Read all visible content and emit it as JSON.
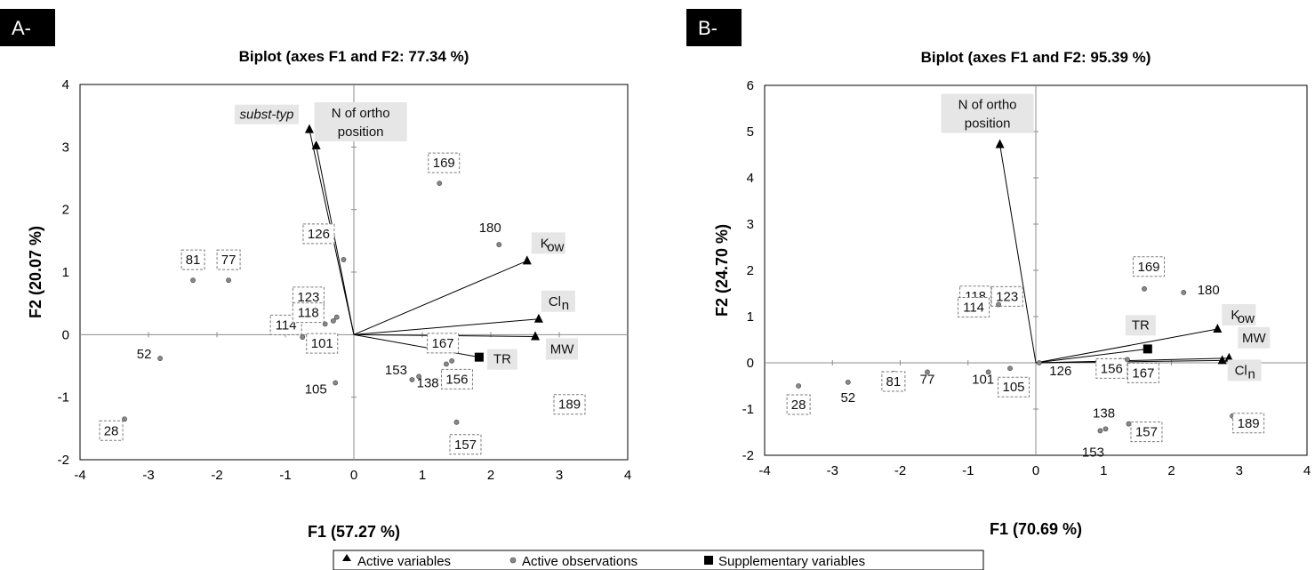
{
  "chart_data": [
    {
      "type": "scatter",
      "panel": "A-",
      "title": "Biplot (axes F1 and F2: 77.34 %)",
      "xlabel": "F1 (57.27 %)",
      "ylabel": "F2 (20.07 %)",
      "xlim": [
        -4,
        4
      ],
      "ylim": [
        -2,
        4
      ],
      "xticks": [
        "-4",
        "-3",
        "-2",
        "-1",
        "0",
        "1",
        "2",
        "3",
        "4"
      ],
      "yticks": [
        "-2",
        "-1",
        "0",
        "1",
        "2",
        "3",
        "4"
      ],
      "active_variables": [
        {
          "label": "subst-typ",
          "x": -0.65,
          "y": 3.28
        },
        {
          "label": "N of ortho position",
          "x": -0.55,
          "y": 3.02
        },
        {
          "label": "K",
          "sub": "ow",
          "x": 2.53,
          "y": 1.18
        },
        {
          "label": "Cl",
          "sub": "n",
          "x": 2.7,
          "y": 0.25
        },
        {
          "label": "MW",
          "x": 2.65,
          "y": -0.03
        }
      ],
      "supplementary_variables": [
        {
          "label": "TR",
          "x": 1.83,
          "y": -0.36
        }
      ],
      "observations": [
        {
          "label": "169",
          "x": 1.25,
          "y": 2.42,
          "boxed": true
        },
        {
          "label": "180",
          "x": 2.12,
          "y": 1.44,
          "boxed": false
        },
        {
          "label": "126",
          "x": -0.15,
          "y": 1.2,
          "boxed": true
        },
        {
          "label": "81",
          "x": -2.35,
          "y": 0.87,
          "boxed": true
        },
        {
          "label": "77",
          "x": -1.83,
          "y": 0.87,
          "boxed": true
        },
        {
          "label": "123",
          "x": -0.3,
          "y": 0.22,
          "boxed": true
        },
        {
          "label": "114",
          "x": -0.42,
          "y": 0.17,
          "boxed": true
        },
        {
          "label": "118",
          "x": -0.25,
          "y": 0.28,
          "boxed": true
        },
        {
          "label": "101",
          "x": -0.75,
          "y": -0.04,
          "boxed": true
        },
        {
          "label": "52",
          "x": -2.83,
          "y": -0.38,
          "boxed": false
        },
        {
          "label": "167",
          "x": 1.43,
          "y": -0.42,
          "boxed": true
        },
        {
          "label": "156",
          "x": 1.35,
          "y": -0.47,
          "boxed": true
        },
        {
          "label": "153",
          "x": 0.85,
          "y": -0.72,
          "boxed": false
        },
        {
          "label": "138",
          "x": 0.95,
          "y": -0.67,
          "boxed": false
        },
        {
          "label": "105",
          "x": -0.27,
          "y": -0.77,
          "boxed": false
        },
        {
          "label": "189",
          "x": 3.02,
          "y": -1.1,
          "boxed": true
        },
        {
          "label": "157",
          "x": 1.5,
          "y": -1.4,
          "boxed": true
        },
        {
          "label": "28",
          "x": -3.35,
          "y": -1.35,
          "boxed": true
        }
      ]
    },
    {
      "type": "scatter",
      "panel": "B-",
      "title": "Biplot (axes F1 and F2: 95.39 %)",
      "xlabel": "F1 (70.69 %)",
      "ylabel": "F2 (24.70 %)",
      "xlim": [
        -4,
        4
      ],
      "ylim": [
        -2,
        6
      ],
      "xticks": [
        "-4",
        "-3",
        "-2",
        "-1",
        "0",
        "1",
        "2",
        "3",
        "4"
      ],
      "yticks": [
        "-2",
        "-1",
        "0",
        "1",
        "2",
        "3",
        "4",
        "5",
        "6"
      ],
      "active_variables": [
        {
          "label": "N of ortho position",
          "x": -0.53,
          "y": 4.72
        },
        {
          "label": "K",
          "sub": "ow",
          "x": 2.68,
          "y": 0.73
        },
        {
          "label": "MW",
          "x": 2.85,
          "y": 0.1
        },
        {
          "label": "Cl",
          "sub": "n",
          "x": 2.75,
          "y": 0.05
        }
      ],
      "supplementary_variables": [
        {
          "label": "TR",
          "x": 1.65,
          "y": 0.3
        }
      ],
      "observations": [
        {
          "label": "169",
          "x": 1.6,
          "y": 1.6,
          "boxed": true
        },
        {
          "label": "180",
          "x": 2.18,
          "y": 1.52,
          "boxed": false
        },
        {
          "label": "118",
          "x": -0.55,
          "y": 1.35,
          "boxed": true
        },
        {
          "label": "123",
          "x": -0.45,
          "y": 1.3,
          "boxed": true
        },
        {
          "label": "114",
          "x": -0.55,
          "y": 1.26,
          "boxed": true
        },
        {
          "label": "126",
          "x": 0.05,
          "y": 0.0,
          "boxed": false
        },
        {
          "label": "156",
          "x": 1.25,
          "y": 0.05,
          "boxed": true
        },
        {
          "label": "167",
          "x": 1.35,
          "y": 0.07,
          "boxed": true
        },
        {
          "label": "105",
          "x": -0.38,
          "y": -0.12,
          "boxed": true
        },
        {
          "label": "101",
          "x": -0.7,
          "y": -0.2,
          "boxed": false
        },
        {
          "label": "77",
          "x": -1.6,
          "y": -0.2,
          "boxed": false
        },
        {
          "label": "81",
          "x": -2.1,
          "y": -0.23,
          "boxed": true
        },
        {
          "label": "52",
          "x": -2.77,
          "y": -0.42,
          "boxed": false
        },
        {
          "label": "28",
          "x": -3.5,
          "y": -0.5,
          "boxed": true
        },
        {
          "label": "138",
          "x": 1.03,
          "y": -1.43,
          "boxed": false
        },
        {
          "label": "153",
          "x": 0.95,
          "y": -1.47,
          "boxed": false
        },
        {
          "label": "157",
          "x": 1.37,
          "y": -1.32,
          "boxed": true
        },
        {
          "label": "189",
          "x": 2.9,
          "y": -1.15,
          "boxed": true
        }
      ]
    }
  ],
  "legend": {
    "active_variables": "Active variables",
    "active_observations": "Active observations",
    "supplementary_variables": "Supplementary variables"
  },
  "colors": {
    "marker": "#000000",
    "observation": "#888888",
    "label_fill": "#e6e6e6",
    "box_stroke": "#7a7a7a",
    "axis": "#8c8c8c"
  }
}
